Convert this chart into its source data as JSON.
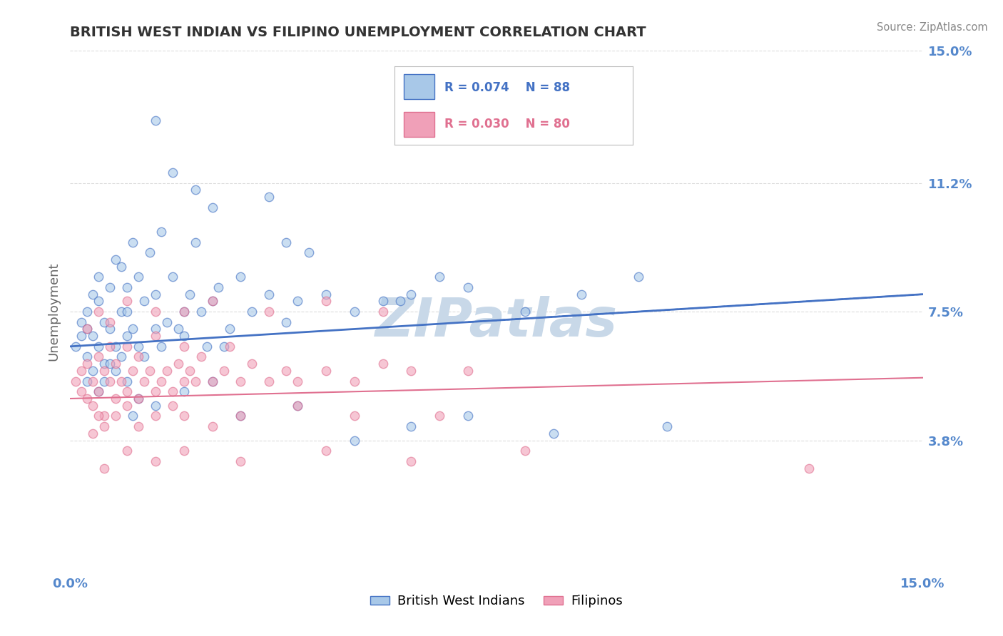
{
  "title": "BRITISH WEST INDIAN VS FILIPINO UNEMPLOYMENT CORRELATION CHART",
  "source_text": "Source: ZipAtlas.com",
  "ylabel": "Unemployment",
  "x_tick_labels": [
    "0.0%",
    "15.0%"
  ],
  "y_tick_values": [
    3.8,
    7.5,
    11.2,
    15.0
  ],
  "xlim": [
    0.0,
    15.0
  ],
  "ylim": [
    0.0,
    15.0
  ],
  "watermark": "ZIPatlas",
  "watermark_color": "#c8d8e8",
  "background_color": "#ffffff",
  "grid_color": "#cccccc",
  "legend_r1": "R = 0.074",
  "legend_n1": "N = 88",
  "legend_r2": "R = 0.030",
  "legend_n2": "N = 80",
  "legend_label1": "British West Indians",
  "legend_label2": "Filipinos",
  "scatter1_color": "#a8c8e8",
  "scatter2_color": "#f0a0b8",
  "line1_color": "#4472c4",
  "line2_color": "#e07090",
  "title_color": "#333333",
  "axis_label_color": "#5588cc",
  "bwi_line_start_y": 6.5,
  "bwi_line_end_y": 8.0,
  "fil_line_start_y": 5.0,
  "fil_line_end_y": 5.6,
  "bwi_x": [
    0.1,
    0.2,
    0.2,
    0.3,
    0.3,
    0.3,
    0.4,
    0.4,
    0.5,
    0.5,
    0.5,
    0.6,
    0.6,
    0.7,
    0.7,
    0.8,
    0.8,
    0.9,
    0.9,
    1.0,
    1.0,
    1.0,
    1.1,
    1.1,
    1.2,
    1.2,
    1.3,
    1.3,
    1.4,
    1.5,
    1.5,
    1.6,
    1.6,
    1.7,
    1.8,
    1.9,
    2.0,
    2.0,
    2.1,
    2.2,
    2.3,
    2.4,
    2.5,
    2.6,
    2.7,
    2.8,
    3.0,
    3.2,
    3.5,
    3.8,
    4.0,
    4.5,
    5.0,
    5.5,
    6.0,
    6.5,
    7.0,
    8.0,
    9.0,
    10.0,
    0.3,
    0.4,
    0.5,
    0.6,
    0.7,
    0.8,
    0.9,
    1.0,
    1.1,
    1.2,
    1.5,
    2.0,
    2.5,
    3.0,
    4.0,
    5.0,
    6.0,
    7.0,
    8.5,
    10.5,
    2.5,
    3.5,
    1.8,
    2.2,
    3.8,
    4.2,
    5.8,
    1.5
  ],
  "bwi_y": [
    6.5,
    6.8,
    7.2,
    7.0,
    6.2,
    7.5,
    6.8,
    8.0,
    6.5,
    7.8,
    8.5,
    7.2,
    6.0,
    8.2,
    7.0,
    6.5,
    9.0,
    7.5,
    8.8,
    6.8,
    7.5,
    8.2,
    9.5,
    7.0,
    6.5,
    8.5,
    7.8,
    6.2,
    9.2,
    7.0,
    8.0,
    6.5,
    9.8,
    7.2,
    8.5,
    7.0,
    7.5,
    6.8,
    8.0,
    9.5,
    7.5,
    6.5,
    7.8,
    8.2,
    6.5,
    7.0,
    8.5,
    7.5,
    8.0,
    7.2,
    7.8,
    8.0,
    7.5,
    7.8,
    8.0,
    8.5,
    8.2,
    7.5,
    8.0,
    8.5,
    5.5,
    5.8,
    5.2,
    5.5,
    6.0,
    5.8,
    6.2,
    5.5,
    4.5,
    5.0,
    4.8,
    5.2,
    5.5,
    4.5,
    4.8,
    3.8,
    4.2,
    4.5,
    4.0,
    4.2,
    10.5,
    10.8,
    11.5,
    11.0,
    9.5,
    9.2,
    7.8,
    13.0
  ],
  "fil_x": [
    0.1,
    0.2,
    0.2,
    0.3,
    0.3,
    0.4,
    0.4,
    0.5,
    0.5,
    0.6,
    0.6,
    0.7,
    0.7,
    0.8,
    0.8,
    0.9,
    1.0,
    1.0,
    1.1,
    1.2,
    1.2,
    1.3,
    1.4,
    1.5,
    1.5,
    1.6,
    1.7,
    1.8,
    1.9,
    2.0,
    2.0,
    2.1,
    2.2,
    2.3,
    2.5,
    2.7,
    3.0,
    3.2,
    3.5,
    3.8,
    4.0,
    4.5,
    5.0,
    5.5,
    6.0,
    7.0,
    0.4,
    0.5,
    0.6,
    0.8,
    1.0,
    1.2,
    1.5,
    1.8,
    2.0,
    2.5,
    3.0,
    4.0,
    5.0,
    6.5,
    0.3,
    0.5,
    0.7,
    1.0,
    1.5,
    2.0,
    2.5,
    3.5,
    4.5,
    5.5,
    0.6,
    1.0,
    1.5,
    2.0,
    3.0,
    4.5,
    6.0,
    8.0,
    13.0,
    2.8
  ],
  "fil_y": [
    5.5,
    5.2,
    5.8,
    5.0,
    6.0,
    5.5,
    4.8,
    5.2,
    6.2,
    5.8,
    4.5,
    5.5,
    6.5,
    5.0,
    6.0,
    5.5,
    5.2,
    6.5,
    5.8,
    5.0,
    6.2,
    5.5,
    5.8,
    5.2,
    6.8,
    5.5,
    5.8,
    5.2,
    6.0,
    5.5,
    6.5,
    5.8,
    5.5,
    6.2,
    5.5,
    5.8,
    5.5,
    6.0,
    5.5,
    5.8,
    5.5,
    5.8,
    5.5,
    6.0,
    5.8,
    5.8,
    4.0,
    4.5,
    4.2,
    4.5,
    4.8,
    4.2,
    4.5,
    4.8,
    4.5,
    4.2,
    4.5,
    4.8,
    4.5,
    4.5,
    7.0,
    7.5,
    7.2,
    7.8,
    7.5,
    7.5,
    7.8,
    7.5,
    7.8,
    7.5,
    3.0,
    3.5,
    3.2,
    3.5,
    3.2,
    3.5,
    3.2,
    3.5,
    3.0,
    6.5
  ]
}
